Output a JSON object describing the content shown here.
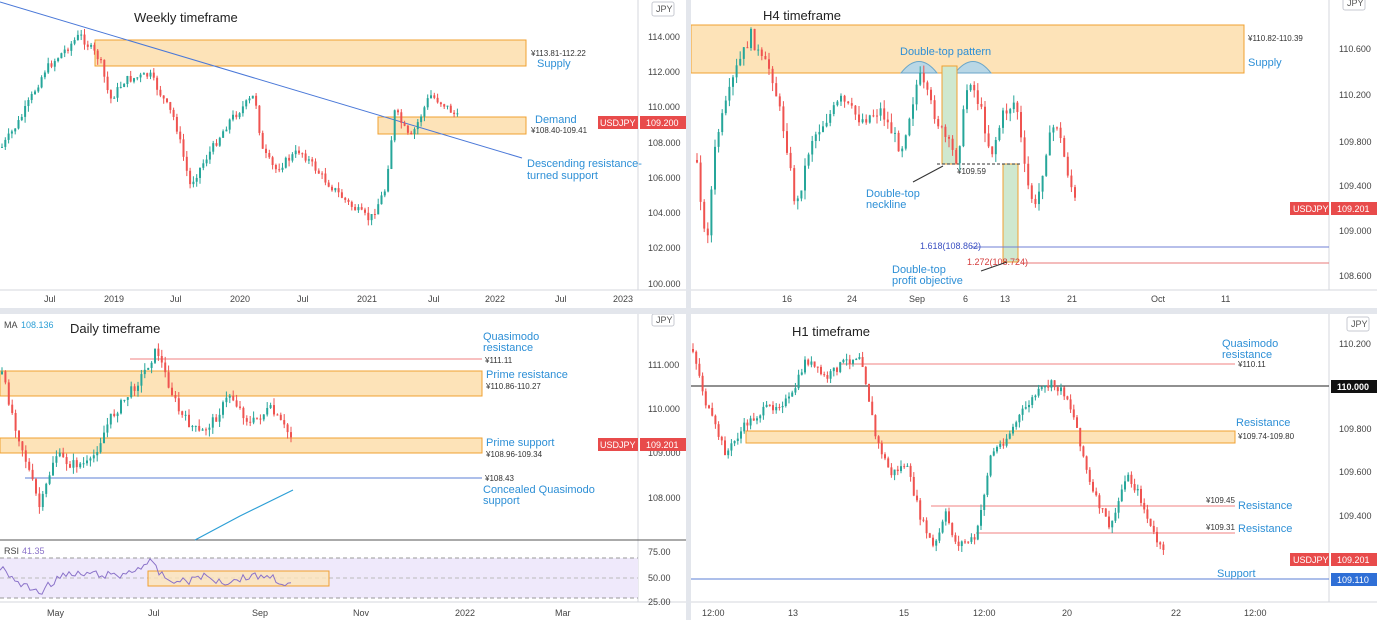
{
  "colors": {
    "zone_fill": "#fde3b8",
    "zone_stroke": "#f0a030",
    "blue_text": "#2d8fd6",
    "bull": "#26a69a",
    "bear": "#ef5350",
    "label_red": "#e84b4b",
    "trend": "#4a78d8",
    "resist_line": "#f08080",
    "support_line": "#5b7fd6",
    "rsi_line": "#8a72c9",
    "rsi_fill": "#efe9fb",
    "ma": "#2d9fd6"
  },
  "panels": [
    {
      "id": "weekly",
      "title": "Weekly timeframe",
      "currency": "JPY",
      "symbol": "USDJPY",
      "price": "109.200",
      "y_ticks": [
        "114.000",
        "112.000",
        "110.000",
        "108.000",
        "106.000",
        "104.000",
        "102.000",
        "100.000"
      ],
      "x_ticks": [
        "Jul",
        "2019",
        "Jul",
        "2020",
        "Jul",
        "2021",
        "Jul",
        "2022",
        "Jul",
        "2023"
      ],
      "annotations": {
        "supply_range": "¥113.81-112.22",
        "supply_label": "Supply",
        "demand_label": "Demand",
        "demand_range": "¥108.40-109.41",
        "trend_label_1": "Descending resistance-",
        "trend_label_2": "turned support"
      }
    },
    {
      "id": "h4",
      "title": "H4 timeframe",
      "currency": "JPY",
      "symbol": "USDJPY",
      "price": "109.201",
      "y_ticks": [
        "110.600",
        "110.200",
        "109.800",
        "109.400",
        "109.000",
        "108.600"
      ],
      "x_ticks": [
        "16",
        "24",
        "Sep",
        "6",
        "13",
        "21",
        "Oct",
        "11"
      ],
      "annotations": {
        "supply_range": "¥110.82-110.39",
        "supply_label": "Supply",
        "pattern_label": "Double-top pattern",
        "neckline_value": "¥109.59",
        "neckline_label_1": "Double-top",
        "neckline_label_2": "neckline",
        "fib_1618": "1.618(108.862)",
        "fib_1272": "1.272(108.724)",
        "objective_label_1": "Double-top",
        "objective_label_2": "profit objective"
      }
    },
    {
      "id": "daily",
      "title": "Daily timeframe",
      "currency": "JPY",
      "symbol": "USDJPY",
      "price": "109.201",
      "ma_label": "MA",
      "ma_value": "108.136",
      "rsi_label": "RSI",
      "rsi_value": "41.35",
      "rsi_ticks": [
        "75.00",
        "50.00",
        "25.00"
      ],
      "y_ticks": [
        "111.000",
        "110.000",
        "109.000",
        "108.000"
      ],
      "x_ticks": [
        "May",
        "Jul",
        "Sep",
        "Nov",
        "2022",
        "Mar"
      ],
      "annotations": {
        "qm_res_1": "Quasimodo",
        "qm_res_2": "resistance",
        "qm_res_value": "¥111.11",
        "prime_res_label": "Prime resistance",
        "prime_res_range": "¥110.86-110.27",
        "prime_sup_label": "Prime support",
        "prime_sup_range": "¥108.96-109.34",
        "cqm_value": "¥108.43",
        "cqm_label_1": "Concealed Quasimodo",
        "cqm_label_2": "support"
      }
    },
    {
      "id": "h1",
      "title": "H1 timeframe",
      "currency": "JPY",
      "symbol": "USDJPY",
      "price": "109.201",
      "y_ticks": [
        "110.200",
        "109.800",
        "109.600",
        "109.400"
      ],
      "level_110": "110.000",
      "support_price": "109.110",
      "x_ticks": [
        "12:00",
        "13",
        "15",
        "12:00",
        "20",
        "22",
        "12:00"
      ],
      "annotations": {
        "qm_res_1": "Quasimodo",
        "qm_res_2": "resistance",
        "qm_res_value": "¥110.11",
        "res_label": "Resistance",
        "res_range": "¥109.74-109.80",
        "r2_value": "¥109.45",
        "r2_label": "Resistance",
        "r3_value": "¥109.31",
        "r3_label": "Resistance",
        "support_label": "Support"
      }
    }
  ]
}
